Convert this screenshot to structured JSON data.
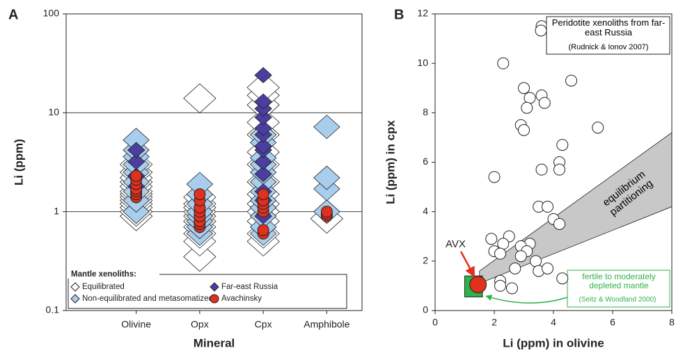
{
  "chart_data": [
    {
      "type": "strip",
      "panel_label": "A",
      "y_label": "Li (ppm)",
      "x_label": "Mineral",
      "categories": [
        "Olivine",
        "Opx",
        "Cpx",
        "Amphibole"
      ],
      "log_y": true,
      "ylim": [
        0.1,
        100
      ],
      "yticks": [
        0.1,
        1,
        10,
        100
      ],
      "grid": true,
      "legend": "lower left",
      "legend_title": "Mantle xenoliths:",
      "series": [
        {
          "name": "Equilibrated",
          "color": "#ffffff",
          "marker": "diamond-large",
          "x": [
            "Olivine",
            "Olivine",
            "Olivine",
            "Olivine",
            "Olivine",
            "Olivine",
            "Olivine",
            "Olivine",
            "Olivine",
            "Olivine",
            "Olivine",
            "Olivine",
            "Olivine",
            "Opx",
            "Opx",
            "Opx",
            "Opx",
            "Opx",
            "Opx",
            "Opx",
            "Opx",
            "Opx",
            "Opx",
            "Opx",
            "Cpx",
            "Cpx",
            "Cpx",
            "Cpx",
            "Cpx",
            "Cpx",
            "Cpx",
            "Cpx",
            "Cpx",
            "Cpx",
            "Cpx",
            "Cpx",
            "Cpx",
            "Cpx",
            "Amphibole"
          ],
          "values": [
            0.9,
            1.0,
            1.1,
            1.2,
            1.3,
            1.4,
            1.5,
            1.6,
            1.8,
            2.0,
            2.2,
            2.5,
            3.0,
            0.35,
            0.5,
            0.6,
            0.7,
            0.8,
            0.9,
            1.0,
            1.1,
            1.2,
            1.4,
            14,
            0.5,
            0.6,
            0.8,
            1.0,
            1.2,
            1.5,
            2,
            3,
            4,
            6,
            8,
            12,
            15,
            18,
            0.85
          ]
        },
        {
          "name": "Non-equilibrated and metasomatized",
          "color": "#a9cdec",
          "marker": "diamond",
          "x": [
            "Olivine",
            "Olivine",
            "Olivine",
            "Olivine",
            "Olivine",
            "Olivine",
            "Olivine",
            "Olivine",
            "Olivine",
            "Opx",
            "Opx",
            "Opx",
            "Opx",
            "Opx",
            "Opx",
            "Opx",
            "Opx",
            "Cpx",
            "Cpx",
            "Cpx",
            "Cpx",
            "Cpx",
            "Cpx",
            "Cpx",
            "Cpx",
            "Cpx",
            "Cpx",
            "Cpx",
            "Cpx",
            "Amphibole",
            "Amphibole",
            "Amphibole",
            "Amphibole"
          ],
          "values": [
            1.0,
            1.3,
            1.6,
            2.0,
            2.5,
            3.0,
            3.6,
            4.2,
            5.3,
            0.6,
            0.7,
            0.8,
            0.9,
            1.0,
            1.2,
            1.5,
            1.9,
            0.6,
            0.7,
            0.9,
            1.1,
            1.3,
            1.6,
            2,
            2.5,
            3,
            3.5,
            5,
            6,
            1.0,
            1.7,
            2.2,
            7.2
          ]
        },
        {
          "name": "Far-east Russia",
          "color": "#4a3fa0",
          "marker": "diamond-small",
          "x": [
            "Olivine",
            "Olivine",
            "Olivine",
            "Olivine",
            "Cpx",
            "Cpx",
            "Cpx",
            "Cpx",
            "Cpx",
            "Cpx",
            "Cpx",
            "Cpx",
            "Cpx",
            "Cpx",
            "Cpx",
            "Cpx",
            "Cpx"
          ],
          "values": [
            1.8,
            2.3,
            3.2,
            4.2,
            0.9,
            1.3,
            1.6,
            2.4,
            3.2,
            4.2,
            4.6,
            6,
            7,
            9,
            11,
            13,
            24
          ]
        },
        {
          "name": "Avachinsky",
          "color": "#e0301e",
          "marker": "circle",
          "x": [
            "Olivine",
            "Olivine",
            "Olivine",
            "Olivine",
            "Olivine",
            "Olivine",
            "Olivine",
            "Opx",
            "Opx",
            "Opx",
            "Opx",
            "Opx",
            "Opx",
            "Opx",
            "Opx",
            "Cpx",
            "Cpx",
            "Cpx",
            "Cpx",
            "Cpx",
            "Cpx",
            "Cpx",
            "Amphibole",
            "Amphibole",
            "Amphibole"
          ],
          "values": [
            1.4,
            1.5,
            1.6,
            1.7,
            1.9,
            2.1,
            2.3,
            0.7,
            0.75,
            0.8,
            0.9,
            1.0,
            1.1,
            1.3,
            1.5,
            0.6,
            0.65,
            1.0,
            1.1,
            1.2,
            1.3,
            1.5,
            0.9,
            0.95,
            1.0
          ]
        }
      ]
    },
    {
      "type": "scatter",
      "panel_label": "B",
      "y_label": "Li (ppm) in cpx",
      "x_label": "Li (ppm) in olivine",
      "xlim": [
        0,
        8
      ],
      "xticks": [
        0,
        2,
        4,
        6,
        8
      ],
      "ylim": [
        0,
        12
      ],
      "yticks": [
        0,
        2,
        4,
        6,
        8,
        10,
        12
      ],
      "grid": false,
      "legend": "upper right",
      "legend_note": "(Rudnick & Ionov 2007)",
      "series": [
        {
          "name": "Peridotite xenoliths from far-east Russia",
          "color": "#ffffff",
          "marker": "circle",
          "x": [
            3.6,
            4.3,
            2.3,
            4.6,
            3.0,
            3.6,
            3.2,
            3.7,
            3.1,
            2.9,
            3.0,
            5.5,
            4.3,
            4.2,
            4.2,
            3.6,
            2.0,
            3.5,
            3.8,
            4.0,
            4.2,
            1.9,
            2.5,
            2.3,
            2.0,
            2.2,
            3.2,
            2.9,
            3.1,
            2.9,
            3.4,
            2.7,
            3.5,
            3.8,
            2.2,
            2.2,
            2.6,
            4.3
          ],
          "values": [
            11.5,
            11.3,
            10,
            9.3,
            9.0,
            8.7,
            8.6,
            8.4,
            8.2,
            7.5,
            7.3,
            7.4,
            6.7,
            6.0,
            5.7,
            5.7,
            5.4,
            4.2,
            4.2,
            3.7,
            3.5,
            2.9,
            3.0,
            2.7,
            2.4,
            2.3,
            2.7,
            2.6,
            2.4,
            2.2,
            2.0,
            1.7,
            1.6,
            1.7,
            1.2,
            1.0,
            0.9,
            1.3
          ]
        },
        {
          "name": "AVX",
          "color": "#e0301e",
          "marker": "circle",
          "x": [
            1.45
          ],
          "values": [
            1.05
          ]
        }
      ],
      "band": {
        "label": "equilibrium partitioning",
        "color": "#c8c8c8",
        "x": [
          1.5,
          8
        ],
        "lower": [
          1.1,
          4.2
        ],
        "upper": [
          1.6,
          7.2
        ]
      },
      "fertile_box": {
        "label": "fertile to moderately depleted mantle",
        "source": "(Seitz & Woodland 2000)",
        "color": "#2eb34a",
        "x": [
          1.0,
          1.6
        ],
        "y": [
          0.55,
          1.4
        ]
      }
    }
  ]
}
